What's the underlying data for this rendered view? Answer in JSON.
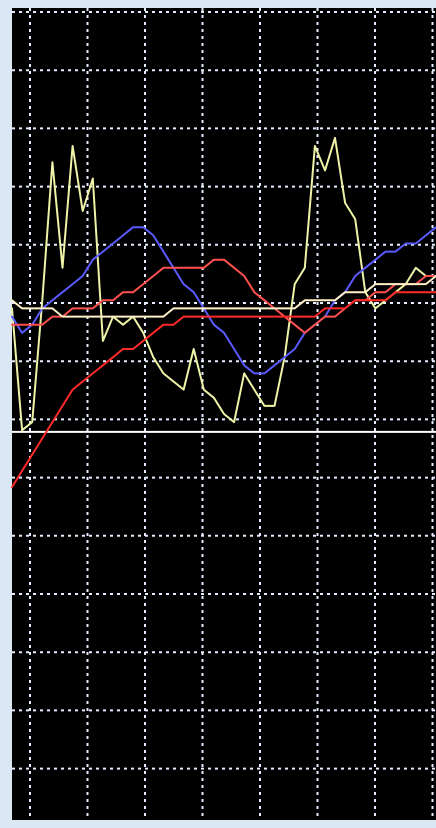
{
  "chart_data": {
    "type": "line",
    "title": "",
    "xlabel": "",
    "ylabel": "",
    "grid": true,
    "legend": "none",
    "xlim": [
      0,
      42
    ],
    "ylim": [
      0,
      100
    ],
    "x": [
      0,
      1,
      2,
      3,
      4,
      5,
      6,
      7,
      8,
      9,
      10,
      11,
      12,
      13,
      14,
      15,
      16,
      17,
      18,
      19,
      20,
      21,
      22,
      23,
      24,
      25,
      26,
      27,
      28,
      29,
      30,
      31,
      32,
      33,
      34,
      35,
      36,
      37,
      38,
      39,
      40,
      41,
      42
    ],
    "baseline": 47.8,
    "colors": {
      "background": "#000000",
      "frame": "#dbe8f4",
      "grid": "#e6ecff",
      "baseline": "#ffffff"
    },
    "series": [
      {
        "color": "#eef3a8",
        "values": [
          63,
          48,
          49,
          64,
          81,
          68,
          83,
          75,
          79,
          59,
          62,
          61,
          62,
          60,
          57,
          55,
          54,
          53,
          58,
          53,
          52,
          50,
          49,
          55,
          53,
          51,
          51,
          57,
          66,
          68,
          83,
          80,
          84,
          76,
          74,
          65,
          63,
          64,
          65,
          66,
          68,
          67,
          67
        ]
      },
      {
        "color": "#5a5aff",
        "values": [
          62,
          60,
          61,
          63,
          64,
          65,
          66,
          67,
          69,
          70,
          71,
          72,
          73,
          73,
          72,
          70,
          68,
          66,
          65,
          63,
          61,
          60,
          58,
          56,
          55,
          55,
          56,
          57,
          58,
          60,
          61,
          62,
          64,
          65,
          67,
          68,
          69,
          70,
          70,
          71,
          71,
          72,
          73
        ]
      },
      {
        "color": "#ff5050",
        "values": [
          61,
          61,
          61,
          61,
          62,
          62,
          63,
          63,
          63,
          64,
          64,
          65,
          65,
          66,
          67,
          68,
          68,
          68,
          68,
          68,
          69,
          69,
          68,
          67,
          65,
          64,
          63,
          62,
          61,
          60,
          61,
          62,
          62,
          63,
          64,
          64,
          65,
          65,
          66,
          66,
          66,
          67,
          67
        ]
      },
      {
        "color": "#fff0c8",
        "values": [
          64,
          63,
          63,
          63,
          63,
          62,
          62,
          62,
          62,
          62,
          62,
          62,
          62,
          62,
          62,
          62,
          63,
          63,
          63,
          63,
          63,
          63,
          63,
          63,
          63,
          63,
          63,
          63,
          63,
          64,
          64,
          64,
          64,
          65,
          65,
          65,
          66,
          66,
          66,
          66,
          66,
          66,
          67
        ]
      },
      {
        "color": "#ff2a2a",
        "values": [
          41,
          43,
          45,
          47,
          49,
          51,
          53,
          54,
          55,
          56,
          57,
          58,
          58,
          59,
          60,
          61,
          61,
          62,
          62,
          62,
          62,
          62,
          62,
          62,
          62,
          62,
          62,
          62,
          62,
          62,
          62,
          63,
          63,
          63,
          64,
          64,
          64,
          64,
          65,
          65,
          65,
          65,
          65
        ]
      }
    ]
  }
}
